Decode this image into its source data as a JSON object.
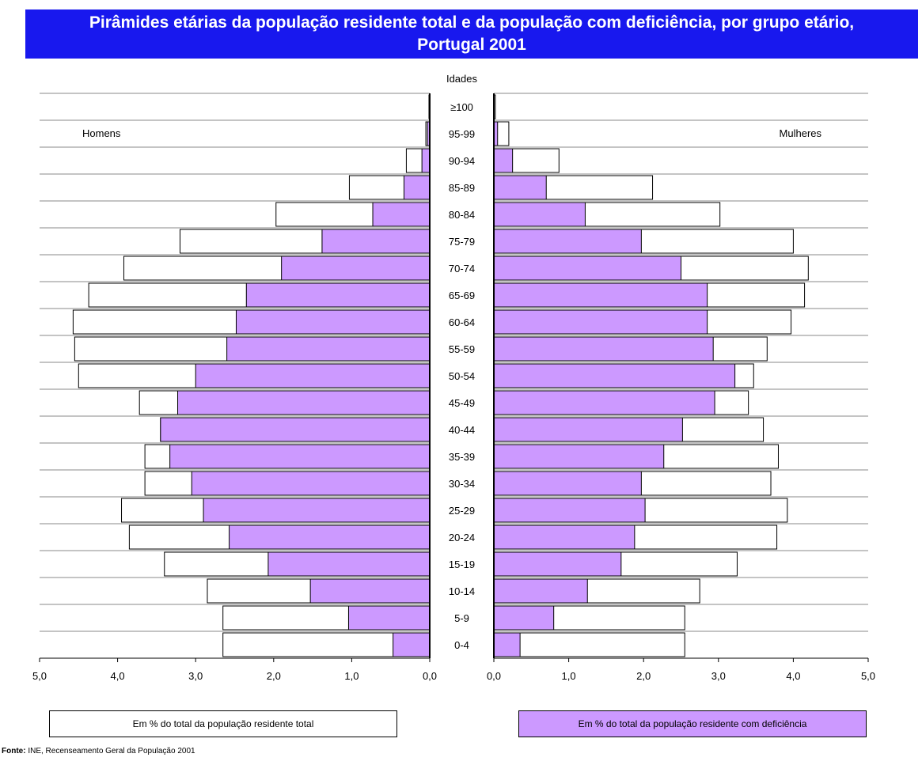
{
  "title": {
    "line1": "Pirâmides etárias da população residente total e da população com deficiência, por grupo etário,",
    "line2": "Portugal 2001"
  },
  "chart_data": {
    "type": "bar",
    "orientation": "horizontal-population-pyramid",
    "age_axis_label": "Idades",
    "left_panel_label": "Homens",
    "right_panel_label": "Mulheres",
    "categories": [
      "0-4",
      "5-9",
      "10-14",
      "15-19",
      "20-24",
      "25-29",
      "30-34",
      "35-39",
      "40-44",
      "45-49",
      "50-54",
      "55-59",
      "60-64",
      "65-69",
      "70-74",
      "75-79",
      "80-84",
      "85-89",
      "90-94",
      "95-99",
      "≥100"
    ],
    "xlim": [
      0,
      5
    ],
    "x_ticks": [
      "5,0",
      "4,0",
      "3,0",
      "2,0",
      "1,0",
      "0,0"
    ],
    "x_ticks_right": [
      "0,0",
      "1,0",
      "2,0",
      "3,0",
      "4,0",
      "5,0"
    ],
    "series": [
      {
        "name": "Em % do total da população residente total",
        "color": "#ffffff",
        "men": [
          2.65,
          2.65,
          2.85,
          3.4,
          3.85,
          3.95,
          3.65,
          3.65,
          3.45,
          3.72,
          4.5,
          4.55,
          4.57,
          4.37,
          3.92,
          3.2,
          1.97,
          1.03,
          0.3,
          0.05,
          0.01
        ],
        "women": [
          2.55,
          2.55,
          2.75,
          3.25,
          3.78,
          3.92,
          3.7,
          3.8,
          3.6,
          3.4,
          3.47,
          3.65,
          3.97,
          4.15,
          4.2,
          4.0,
          3.02,
          2.12,
          0.87,
          0.2,
          0.02
        ]
      },
      {
        "name": "Em % do total da população residente com deficiência",
        "color": "#cc99ff",
        "men": [
          0.47,
          1.04,
          1.53,
          2.07,
          2.57,
          2.9,
          3.05,
          3.33,
          3.45,
          3.23,
          3.0,
          2.6,
          2.48,
          2.35,
          1.9,
          1.38,
          0.73,
          0.33,
          0.1,
          0.03,
          0.0
        ],
        "women": [
          0.35,
          0.8,
          1.25,
          1.7,
          1.88,
          2.02,
          1.97,
          2.27,
          2.52,
          2.95,
          3.22,
          2.93,
          2.85,
          2.85,
          2.5,
          1.97,
          1.22,
          0.7,
          0.25,
          0.05,
          0.0
        ]
      }
    ]
  },
  "legend": {
    "total_label": "Em % do total da população residente total",
    "deficiency_label": "Em % do total da população residente com deficiência"
  },
  "source": {
    "prefix": "Fonte:",
    "text": " INE, Recenseamento Geral da População 2001"
  }
}
